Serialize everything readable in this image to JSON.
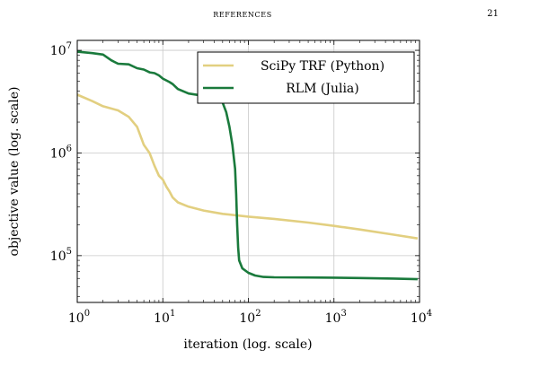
{
  "page": {
    "running_head": "REFERENCES",
    "page_number": "21"
  },
  "chart_data": {
    "type": "line",
    "xlabel": "iteration (log. scale)",
    "ylabel": "objective value (log. scale)",
    "xscale": "log",
    "yscale": "log",
    "xlim": [
      1,
      10000
    ],
    "ylim": [
      35000,
      12500000
    ],
    "xticks": [
      {
        "base": "10",
        "exp": "0",
        "value": 1
      },
      {
        "base": "10",
        "exp": "1",
        "value": 10
      },
      {
        "base": "10",
        "exp": "2",
        "value": 100
      },
      {
        "base": "10",
        "exp": "3",
        "value": 1000
      },
      {
        "base": "10",
        "exp": "4",
        "value": 10000
      }
    ],
    "yticks": [
      {
        "base": "10",
        "exp": "5",
        "value": 100000
      },
      {
        "base": "10",
        "exp": "6",
        "value": 1000000
      },
      {
        "base": "10",
        "exp": "7",
        "value": 10000000
      }
    ],
    "grid": true,
    "legend_position": "top-right",
    "series": [
      {
        "name": "SciPy TRF (Python)",
        "color": "#e2cf80",
        "points": [
          [
            1,
            3700000
          ],
          [
            1.5,
            3200000
          ],
          [
            2,
            2850000
          ],
          [
            3,
            2600000
          ],
          [
            4,
            2250000
          ],
          [
            5,
            1800000
          ],
          [
            6,
            1200000
          ],
          [
            7,
            1000000
          ],
          [
            8,
            750000
          ],
          [
            9,
            600000
          ],
          [
            10,
            550000
          ],
          [
            11,
            470000
          ],
          [
            12,
            420000
          ],
          [
            13,
            370000
          ],
          [
            15,
            330000
          ],
          [
            20,
            300000
          ],
          [
            30,
            275000
          ],
          [
            50,
            255000
          ],
          [
            100,
            240000
          ],
          [
            200,
            228000
          ],
          [
            500,
            210000
          ],
          [
            1000,
            195000
          ],
          [
            2000,
            180000
          ],
          [
            5000,
            160000
          ],
          [
            9500,
            147000
          ]
        ]
      },
      {
        "name": "RLM (Julia)",
        "color": "#1a7a3c",
        "points": [
          [
            1,
            9700000
          ],
          [
            1.5,
            9400000
          ],
          [
            2,
            9100000
          ],
          [
            2.5,
            8000000
          ],
          [
            3,
            7400000
          ],
          [
            4,
            7300000
          ],
          [
            5,
            6700000
          ],
          [
            6,
            6500000
          ],
          [
            7,
            6100000
          ],
          [
            8,
            6000000
          ],
          [
            9,
            5700000
          ],
          [
            10,
            5300000
          ],
          [
            12,
            4900000
          ],
          [
            13,
            4700000
          ],
          [
            15,
            4200000
          ],
          [
            20,
            3800000
          ],
          [
            30,
            3600000
          ],
          [
            40,
            3400000
          ],
          [
            45,
            3250000
          ],
          [
            50,
            3100000
          ],
          [
            55,
            2500000
          ],
          [
            60,
            1800000
          ],
          [
            65,
            1200000
          ],
          [
            70,
            700000
          ],
          [
            72,
            400000
          ],
          [
            74,
            200000
          ],
          [
            76,
            120000
          ],
          [
            78,
            90000
          ],
          [
            85,
            75000
          ],
          [
            100,
            68000
          ],
          [
            120,
            64000
          ],
          [
            150,
            62000
          ],
          [
            200,
            61500
          ],
          [
            500,
            61300
          ],
          [
            1000,
            61000
          ],
          [
            2000,
            60500
          ],
          [
            5000,
            59800
          ],
          [
            9500,
            59000
          ]
        ]
      }
    ]
  }
}
